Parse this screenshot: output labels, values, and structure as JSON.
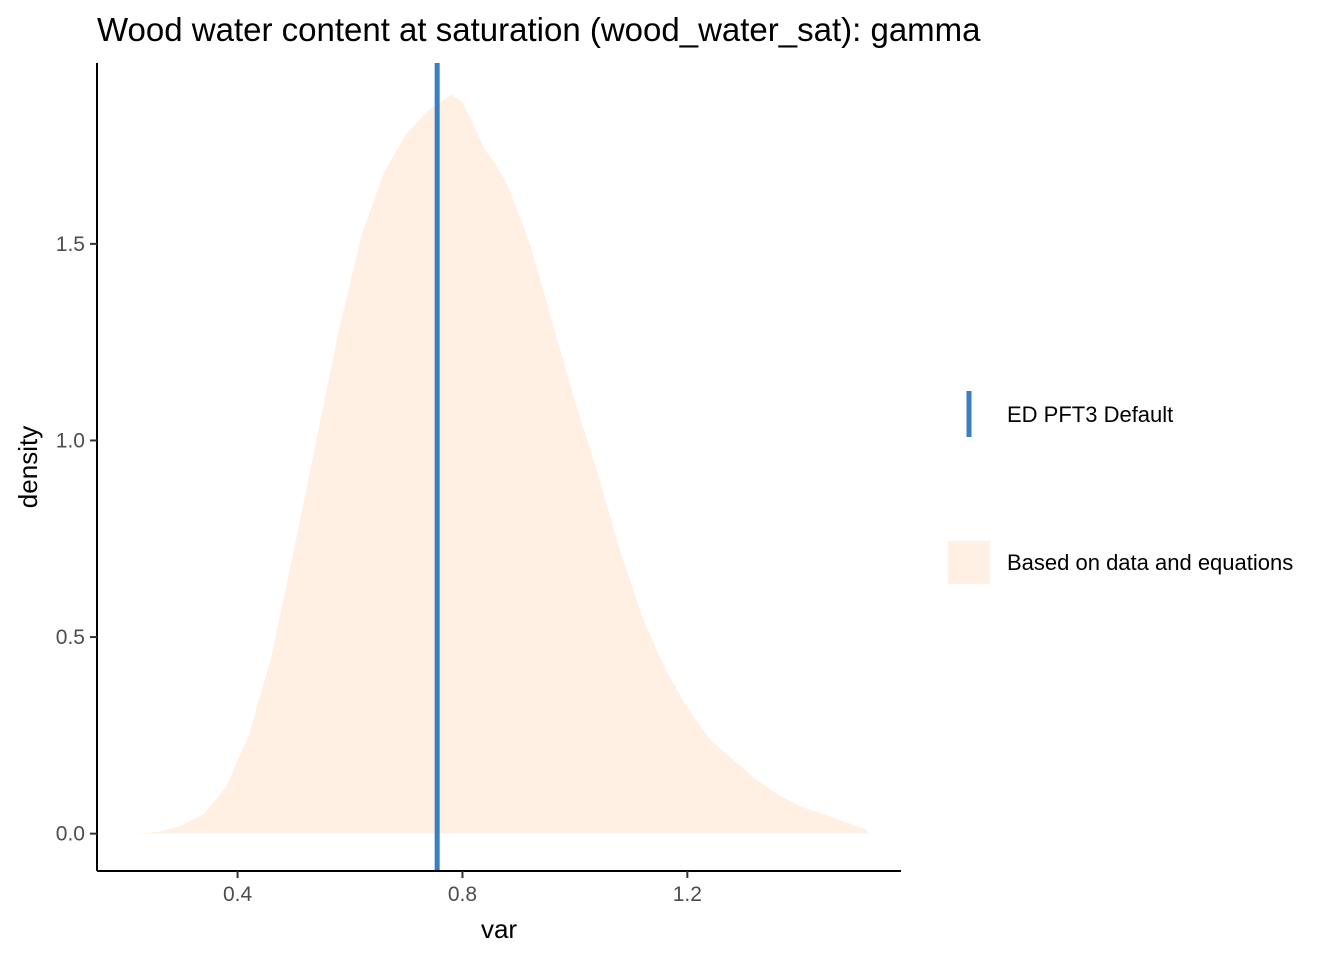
{
  "chart_data": {
    "type": "area",
    "title": "Wood water content at saturation (wood_water_sat): gamma",
    "xlabel": "var",
    "ylabel": "density",
    "xlim": [
      0.15,
      1.58
    ],
    "ylim": [
      -0.095,
      1.96
    ],
    "x_ticks": [
      0.4,
      0.8,
      1.2
    ],
    "x_tick_labels": [
      "0.4",
      "0.8",
      "1.2"
    ],
    "y_ticks": [
      0.0,
      0.5,
      1.0,
      1.5
    ],
    "y_tick_labels": [
      "0.0",
      "0.5",
      "1.0",
      "1.5"
    ],
    "grid": false,
    "legend_position": "right",
    "series": [
      {
        "name": "Based on data and equations",
        "kind": "density-area",
        "color": "#fff0e3",
        "x": [
          0.22,
          0.26,
          0.3,
          0.34,
          0.38,
          0.42,
          0.46,
          0.5,
          0.54,
          0.58,
          0.62,
          0.66,
          0.7,
          0.74,
          0.78,
          0.8,
          0.82,
          0.84,
          0.86,
          0.88,
          0.92,
          0.96,
          1.0,
          1.04,
          1.08,
          1.12,
          1.16,
          1.2,
          1.24,
          1.28,
          1.32,
          1.36,
          1.4,
          1.44,
          1.48,
          1.52
        ],
        "y": [
          0.0,
          0.005,
          0.02,
          0.05,
          0.12,
          0.25,
          0.45,
          0.72,
          1.0,
          1.28,
          1.52,
          1.68,
          1.78,
          1.84,
          1.88,
          1.86,
          1.8,
          1.74,
          1.7,
          1.65,
          1.5,
          1.3,
          1.1,
          0.92,
          0.72,
          0.55,
          0.42,
          0.32,
          0.24,
          0.19,
          0.14,
          0.1,
          0.07,
          0.05,
          0.03,
          0.01
        ]
      },
      {
        "name": "ED PFT3 Default",
        "kind": "vline",
        "color": "#3a7fc1",
        "x_value": 0.755
      }
    ]
  }
}
